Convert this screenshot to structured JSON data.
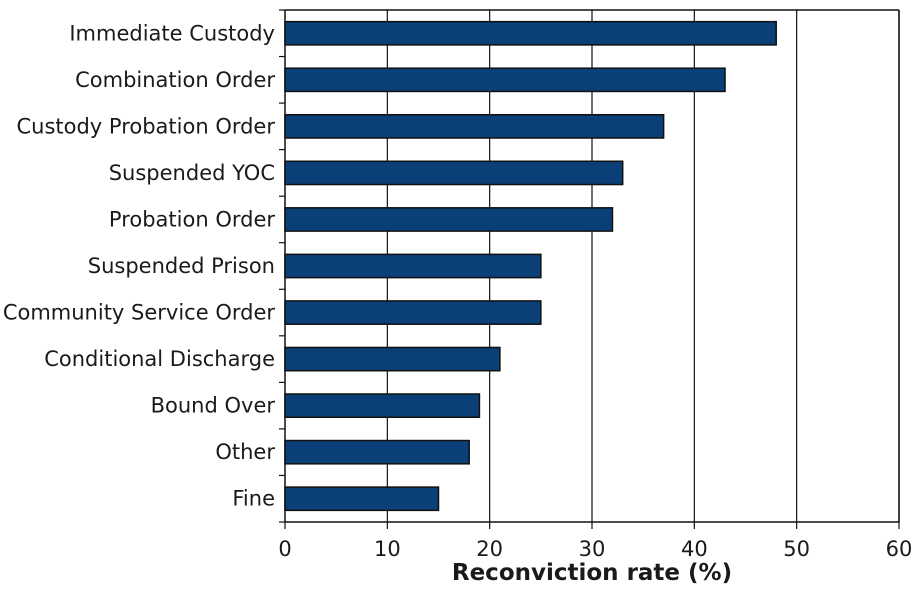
{
  "chart_data": {
    "type": "bar",
    "orientation": "horizontal",
    "categories": [
      "Immediate Custody",
      "Combination Order",
      "Custody Probation Order",
      "Suspended YOC",
      "Probation Order",
      "Suspended Prison",
      "Community Service Order",
      "Conditional Discharge",
      "Bound Over",
      "Other",
      "Fine"
    ],
    "values": [
      48,
      43,
      37,
      33,
      32,
      25,
      25,
      21,
      19,
      18,
      15
    ],
    "title": "",
    "xlabel": "Reconviction rate (%)",
    "ylabel": "",
    "xlim": [
      0,
      60
    ],
    "xticks": [
      "0",
      "10",
      "20",
      "30",
      "40",
      "50",
      "60"
    ],
    "grid": "vertical",
    "legend": "none",
    "colors": {
      "bar": "#0b3f78",
      "bar_edge": "#111111",
      "grid": "#111111"
    }
  }
}
